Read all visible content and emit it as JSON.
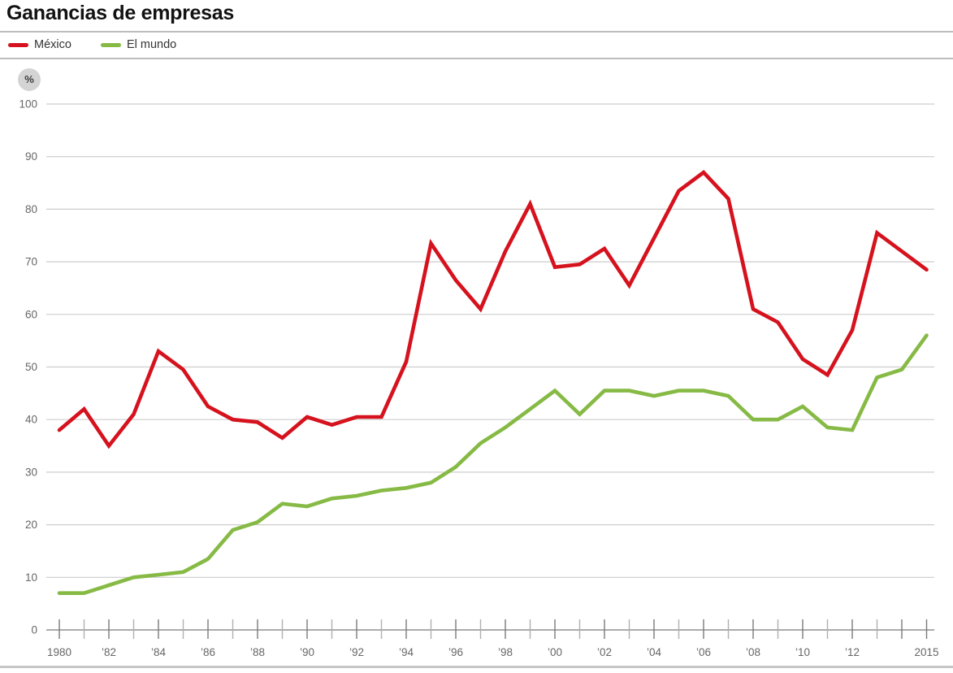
{
  "title": "Ganancias de empresas",
  "y_axis_unit": "%",
  "chart_data": {
    "type": "line",
    "title": "Ganancias de empresas",
    "xlabel": "",
    "ylabel": "%",
    "ylim": [
      0,
      100
    ],
    "yticks": [
      0,
      10,
      20,
      30,
      40,
      50,
      60,
      70,
      80,
      90,
      100
    ],
    "grid": "horizontal",
    "legend_position": "top-left",
    "x": [
      1980,
      1981,
      1982,
      1983,
      1984,
      1985,
      1986,
      1987,
      1988,
      1989,
      1990,
      1991,
      1992,
      1993,
      1994,
      1995,
      1996,
      1997,
      1998,
      1999,
      2000,
      2001,
      2002,
      2003,
      2004,
      2005,
      2006,
      2007,
      2008,
      2009,
      2010,
      2011,
      2012,
      2013,
      2014,
      2015
    ],
    "x_tick_labels": [
      {
        "x": 1980,
        "label": "1980"
      },
      {
        "x": 1982,
        "label": "’82"
      },
      {
        "x": 1984,
        "label": "’84"
      },
      {
        "x": 1986,
        "label": "’86"
      },
      {
        "x": 1988,
        "label": "’88"
      },
      {
        "x": 1990,
        "label": "’90"
      },
      {
        "x": 1992,
        "label": "’92"
      },
      {
        "x": 1994,
        "label": "’94"
      },
      {
        "x": 1996,
        "label": "’96"
      },
      {
        "x": 1998,
        "label": "’98"
      },
      {
        "x": 2000,
        "label": "’00"
      },
      {
        "x": 2002,
        "label": "’02"
      },
      {
        "x": 2004,
        "label": "’04"
      },
      {
        "x": 2006,
        "label": "’06"
      },
      {
        "x": 2008,
        "label": "’08"
      },
      {
        "x": 2010,
        "label": "’10"
      },
      {
        "x": 2012,
        "label": "’12"
      },
      {
        "x": 2015,
        "label": "2015"
      }
    ],
    "series": [
      {
        "name": "México",
        "color": "#d5121d",
        "values": [
          38,
          42,
          35,
          41,
          53,
          49.5,
          42.5,
          40,
          39.5,
          36.5,
          40.5,
          39,
          40.5,
          40.5,
          51,
          73.5,
          66.5,
          61,
          72,
          81,
          69,
          69.5,
          72.5,
          65.5,
          74.5,
          83.5,
          87,
          82,
          61,
          58.5,
          51.5,
          48.5,
          57,
          75.5,
          72,
          68.5
        ]
      },
      {
        "name": "El mundo",
        "color": "#86ba45",
        "values": [
          7,
          7,
          8.5,
          10,
          10.5,
          11,
          13.5,
          19,
          20.5,
          24,
          23.5,
          25,
          25.5,
          26.5,
          27,
          28,
          31,
          35.5,
          38.5,
          42,
          45.5,
          41,
          45.5,
          45.5,
          44.5,
          45.5,
          45.5,
          44.5,
          40,
          40,
          42.5,
          38.5,
          38,
          48,
          49.5,
          56
        ]
      }
    ]
  },
  "colors": {
    "grid": "#cdcdcd",
    "axis": "#8f8f8f",
    "tick_major": "#7a7a7a",
    "tick_minor": "#b0b0b0",
    "rule": "#bdbdbd"
  }
}
